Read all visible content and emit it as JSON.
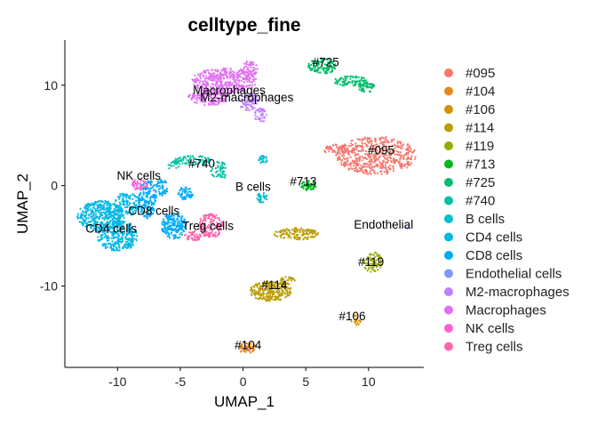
{
  "chart_data": {
    "type": "scatter",
    "title": "celltype_fine",
    "xlabel": "UMAP_1",
    "ylabel": "UMAP_2",
    "xlim": [
      -14.2,
      14.4
    ],
    "ylim": [
      -18.1,
      14.5
    ],
    "xticks": [
      -10,
      -5,
      0,
      5,
      10
    ],
    "yticks": [
      -10,
      0,
      10
    ],
    "grid": false,
    "legend_position": "right",
    "series": [
      {
        "name": "#095",
        "color": "#F8766D",
        "label": "#095",
        "label_at": [
          11.0,
          3.1
        ],
        "blobs": [
          {
            "cx": 10.6,
            "cy": 3.0,
            "rx": 3.2,
            "ry": 1.9,
            "n": 520
          },
          {
            "cx": 7.4,
            "cy": 3.6,
            "rx": 1.0,
            "ry": 0.5,
            "n": 60
          }
        ]
      },
      {
        "name": "#104",
        "color": "#E7861B",
        "label": "#104",
        "label_at": [
          0.4,
          -16.3
        ],
        "blobs": [
          {
            "cx": 0.3,
            "cy": -16.1,
            "rx": 0.7,
            "ry": 0.6,
            "n": 60
          }
        ]
      },
      {
        "name": "#106",
        "color": "#D39200",
        "label": "#106",
        "label_at": [
          8.7,
          -13.4
        ],
        "blobs": [
          {
            "cx": 9.0,
            "cy": -13.4,
            "rx": 0.4,
            "ry": 0.5,
            "n": 18
          }
        ]
      },
      {
        "name": "#114",
        "color": "#BB9D00",
        "label": "#114",
        "label_at": [
          2.5,
          -10.3
        ],
        "blobs": [
          {
            "cx": 2.2,
            "cy": -10.5,
            "rx": 1.7,
            "ry": 1.0,
            "n": 260
          },
          {
            "cx": 4.3,
            "cy": -4.8,
            "rx": 1.8,
            "ry": 0.6,
            "n": 130
          },
          {
            "cx": 3.6,
            "cy": -9.4,
            "rx": 0.6,
            "ry": 0.4,
            "n": 25
          }
        ]
      },
      {
        "name": "#119",
        "color": "#95A900",
        "label": "#119",
        "label_at": [
          10.2,
          -8.0
        ],
        "blobs": [
          {
            "cx": 10.3,
            "cy": -7.6,
            "rx": 0.8,
            "ry": 1.0,
            "n": 70
          }
        ]
      },
      {
        "name": "#713",
        "color": "#00B81F",
        "label": "#713",
        "label_at": [
          4.8,
          0.0
        ],
        "blobs": [
          {
            "cx": 5.2,
            "cy": 0.0,
            "rx": 0.6,
            "ry": 0.5,
            "n": 45
          }
        ]
      },
      {
        "name": "#725",
        "color": "#00BE6C",
        "label": "#725",
        "label_at": [
          6.6,
          11.9
        ],
        "blobs": [
          {
            "cx": 6.3,
            "cy": 11.9,
            "rx": 1.1,
            "ry": 0.8,
            "n": 120
          },
          {
            "cx": 8.6,
            "cy": 10.4,
            "rx": 1.4,
            "ry": 0.5,
            "n": 90
          },
          {
            "cx": 9.9,
            "cy": 9.8,
            "rx": 0.7,
            "ry": 0.5,
            "n": 50
          }
        ]
      },
      {
        "name": "#740",
        "color": "#00C1A3",
        "label": "#740",
        "label_at": [
          -3.3,
          1.8
        ],
        "blobs": [
          {
            "cx": -4.0,
            "cy": 2.5,
            "rx": 1.5,
            "ry": 0.5,
            "n": 80
          },
          {
            "cx": -1.9,
            "cy": 1.5,
            "rx": 0.7,
            "ry": 0.9,
            "n": 50
          },
          {
            "cx": -5.5,
            "cy": 2.0,
            "rx": 0.5,
            "ry": 0.5,
            "n": 20
          }
        ]
      },
      {
        "name": "B cells",
        "color": "#00BECF",
        "label": "B cells",
        "label_at": [
          0.8,
          -0.5
        ],
        "blobs": [
          {
            "cx": 1.5,
            "cy": -1.2,
            "rx": 0.45,
            "ry": 0.5,
            "n": 30
          },
          {
            "cx": 1.6,
            "cy": 2.6,
            "rx": 0.35,
            "ry": 0.4,
            "n": 22
          }
        ]
      },
      {
        "name": "CD4 cells",
        "color": "#00B8E5",
        "label": "CD4 cells",
        "label_at": [
          -10.5,
          -4.7
        ],
        "blobs": [
          {
            "cx": -11.3,
            "cy": -3.0,
            "rx": 1.9,
            "ry": 1.5,
            "n": 420
          },
          {
            "cx": -10.0,
            "cy": -5.0,
            "rx": 1.6,
            "ry": 1.6,
            "n": 300
          },
          {
            "cx": -9.2,
            "cy": -1.8,
            "rx": 1.0,
            "ry": 1.2,
            "n": 120
          }
        ]
      },
      {
        "name": "CD8 cells",
        "color": "#00ABFD",
        "label": "CD8 cells",
        "label_at": [
          -7.1,
          -2.9
        ],
        "blobs": [
          {
            "cx": -7.6,
            "cy": -1.3,
            "rx": 0.7,
            "ry": 2.0,
            "n": 160
          },
          {
            "cx": -5.5,
            "cy": -4.0,
            "rx": 1.0,
            "ry": 1.3,
            "n": 200
          },
          {
            "cx": -6.5,
            "cy": -0.2,
            "rx": 0.5,
            "ry": 0.8,
            "n": 50
          },
          {
            "cx": -4.6,
            "cy": -0.8,
            "rx": 0.6,
            "ry": 0.7,
            "n": 50
          }
        ]
      },
      {
        "name": "Endothelial cells",
        "color": "#7F96FF",
        "label": "Endothelial",
        "label_at": [
          11.2,
          -4.3
        ],
        "blobs": [
          {
            "cx": 13.1,
            "cy": -4.2,
            "rx": 0.15,
            "ry": 0.15,
            "n": 3
          }
        ]
      },
      {
        "name": "M2-macrophages",
        "color": "#BE80FF",
        "label": "M2-macrophages",
        "label_at": [
          0.3,
          8.4
        ],
        "blobs": [
          {
            "cx": 0.4,
            "cy": 8.4,
            "rx": 0.8,
            "ry": 0.9,
            "n": 80
          },
          {
            "cx": 1.4,
            "cy": 7.0,
            "rx": 0.5,
            "ry": 0.7,
            "n": 40
          }
        ]
      },
      {
        "name": "Macrophages",
        "color": "#E36EF6",
        "label": "Macrophages",
        "label_at": [
          -1.1,
          9.1
        ],
        "blobs": [
          {
            "cx": -1.5,
            "cy": 10.4,
            "rx": 2.6,
            "ry": 1.3,
            "n": 380
          },
          {
            "cx": -2.8,
            "cy": 8.8,
            "rx": 1.7,
            "ry": 0.8,
            "n": 140
          },
          {
            "cx": 0.5,
            "cy": 11.6,
            "rx": 0.7,
            "ry": 0.8,
            "n": 60
          }
        ]
      },
      {
        "name": "NK cells",
        "color": "#FB61D7",
        "label": "NK cells",
        "label_at": [
          -8.3,
          0.6
        ],
        "blobs": [
          {
            "cx": -8.2,
            "cy": 0.1,
            "rx": 0.7,
            "ry": 0.6,
            "n": 45
          }
        ]
      },
      {
        "name": "Treg cells",
        "color": "#FF65AC",
        "label": "Treg cells",
        "label_at": [
          -2.8,
          -4.4
        ],
        "blobs": [
          {
            "cx": -2.6,
            "cy": -4.0,
            "rx": 1.0,
            "ry": 1.2,
            "n": 150
          },
          {
            "cx": -4.0,
            "cy": -5.0,
            "rx": 0.7,
            "ry": 0.5,
            "n": 40
          }
        ]
      }
    ]
  }
}
